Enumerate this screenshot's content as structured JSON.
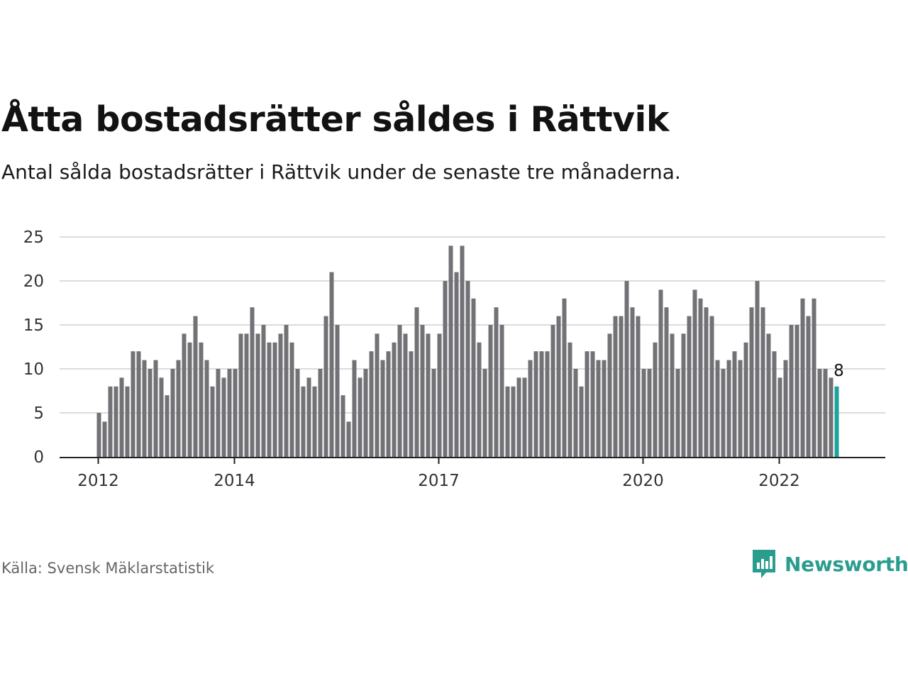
{
  "title": "Åtta bostadsrätter såldes i Rättvik",
  "subtitle": "Antal sålda bostadsrätter i Rättvik under de senaste tre månaderna.",
  "source": "Källa: Svensk Mäklarstatistik",
  "brand": {
    "name": "Newsworthy",
    "color": "#2a9d8f"
  },
  "chart_data": {
    "type": "bar",
    "start": "2012-01",
    "interval": "month",
    "values": [
      5,
      4,
      8,
      8,
      9,
      8,
      12,
      12,
      11,
      10,
      11,
      9,
      7,
      10,
      11,
      14,
      13,
      16,
      13,
      11,
      8,
      10,
      9,
      10,
      10,
      14,
      14,
      17,
      14,
      15,
      13,
      13,
      14,
      15,
      13,
      10,
      8,
      9,
      8,
      10,
      16,
      21,
      15,
      7,
      4,
      11,
      9,
      10,
      12,
      14,
      11,
      12,
      13,
      15,
      14,
      12,
      17,
      15,
      14,
      10,
      14,
      20,
      24,
      21,
      24,
      20,
      18,
      13,
      10,
      15,
      17,
      15,
      8,
      8,
      9,
      9,
      11,
      12,
      12,
      12,
      15,
      16,
      18,
      13,
      10,
      8,
      12,
      12,
      11,
      11,
      14,
      16,
      16,
      20,
      17,
      16,
      10,
      10,
      13,
      19,
      17,
      14,
      10,
      14,
      16,
      19,
      18,
      17,
      16,
      11,
      10,
      11,
      12,
      11,
      13,
      17,
      20,
      17,
      14,
      12,
      9,
      11,
      15,
      15,
      18,
      16,
      18,
      10,
      10,
      9,
      8
    ],
    "highlight": {
      "value": 8,
      "label": "8",
      "color": "#1ba39c"
    },
    "bar_color": "#727176",
    "y_ticks": [
      0,
      5,
      10,
      15,
      20,
      25
    ],
    "ylim": [
      0,
      25
    ],
    "x_ticks": [
      {
        "label": "2012",
        "index": 0
      },
      {
        "label": "2014",
        "index": 24
      },
      {
        "label": "2017",
        "index": 60
      },
      {
        "label": "2020",
        "index": 96
      },
      {
        "label": "2022",
        "index": 120
      }
    ],
    "grid": true
  }
}
